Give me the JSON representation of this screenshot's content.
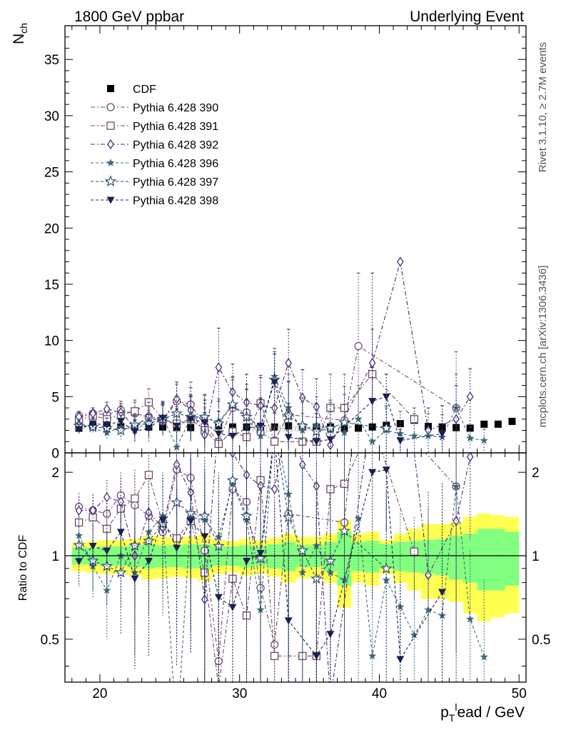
{
  "header": {
    "left_title": "1800 GeV ppbar",
    "right_title": "Underlying Event"
  },
  "side_labels": {
    "rivet": "Rivet 3.1.10, ≥ 2.7M events",
    "mcplots": "mcplots.cern.ch [arXiv:1306.3436]"
  },
  "watermark": "mcplots.cern.ch",
  "colors": {
    "cdf": "#000000",
    "band_inner": "#80ff80",
    "band_outer": "#ffff50",
    "p390": "#6e4a6e",
    "p391": "#6e4a5e",
    "p392": "#4b2a7a",
    "p396": "#3e6a7a",
    "p397": "#2a4a6a",
    "p398": "#1a2050"
  },
  "chart_data": [
    {
      "type": "scatter",
      "panel": "main",
      "ylabel": "N_ch",
      "ylim": [
        0,
        38
      ],
      "yticks": [
        "0",
        "5",
        "10",
        "15",
        "20",
        "25",
        "30",
        "35"
      ],
      "legend": {
        "placement": "top-left"
      },
      "x": [
        18.5,
        19.5,
        20.5,
        21.5,
        22.5,
        23.5,
        24.5,
        25.5,
        26.5,
        27.5,
        28.5,
        29.5,
        30.5,
        31.5,
        32.5,
        33.5,
        34.5,
        35.5,
        36.5,
        37.5,
        38.5,
        39.5,
        40.5,
        41.5,
        42.5,
        43.5,
        44.5,
        45.5,
        46.5,
        47.5,
        48.5,
        49.5
      ],
      "series": [
        {
          "name": "CDF",
          "key": "cdf",
          "marker": "filled-square",
          "values": [
            2.2,
            2.4,
            2.4,
            2.3,
            2.3,
            2.3,
            2.3,
            2.25,
            2.25,
            2.3,
            2.4,
            2.3,
            2.3,
            2.35,
            2.3,
            2.4,
            2.3,
            2.3,
            2.3,
            2.2,
            2.2,
            2.3,
            2.45,
            2.6,
            2.9,
            2.35,
            2.3,
            2.25,
            2.2,
            2.55,
            2.55,
            2.8
          ],
          "errors": [
            0.15,
            0.15,
            0.15,
            0.15,
            0.15,
            0.15,
            0.15,
            0.15,
            0.15,
            0.15,
            0.15,
            0.15,
            0.15,
            0.15,
            0.15,
            0.15,
            0.15,
            0.15,
            0.15,
            0.15,
            0.15,
            0.15,
            0.15,
            0.15,
            0.15,
            0.15,
            0.15,
            0.15,
            0.15,
            0.15,
            0.15,
            0.15
          ]
        },
        {
          "name": "Pythia 6.428 390",
          "key": "p390",
          "marker": "open-circle",
          "dash": "6 3 2 3",
          "values": [
            3.3,
            3.5,
            3.4,
            3.8,
            3.5,
            3.2,
            2.8,
            4.6,
            4.3,
            2.4,
            1.0,
            4.0,
            3.6,
            1.8,
            1.1,
            3.4,
            null,
            null,
            null,
            2.9,
            9.5,
            null,
            null,
            null,
            null,
            null,
            null,
            4.0,
            null,
            null,
            null,
            null
          ],
          "errors": [
            0.4,
            0.5,
            0.6,
            0.8,
            1.0,
            1.2,
            1.4,
            1.5,
            2.0,
            2.0,
            2.0,
            2.5,
            2.5,
            2.5,
            2.5,
            3.0,
            0,
            0,
            0,
            3.0,
            6.5,
            0,
            0,
            0,
            0,
            0,
            0,
            3.0,
            0,
            0,
            0,
            0
          ]
        },
        {
          "name": "Pythia 6.428 391",
          "key": "p391",
          "marker": "open-square",
          "dash": "6 3 2 3",
          "values": [
            2.9,
            3.3,
            3.0,
            3.4,
            3.7,
            4.5,
            3.0,
            2.6,
            3.0,
            2.0,
            0.8,
            1.9,
            1.4,
            4.4,
            1.0,
            null,
            1.0,
            1.0,
            4.0,
            4.0,
            null,
            7.0,
            null,
            null,
            3.0,
            null,
            null,
            null,
            null,
            null,
            null,
            null
          ],
          "errors": [
            0.4,
            0.5,
            0.6,
            0.8,
            1.0,
            1.2,
            1.4,
            1.5,
            2.0,
            2.0,
            2.0,
            2.5,
            2.5,
            2.5,
            2.5,
            0,
            2.5,
            2.5,
            3.0,
            3.0,
            0,
            4.0,
            0,
            0,
            1.0,
            0,
            0,
            0,
            0,
            0,
            0,
            0
          ]
        },
        {
          "name": "Pythia 6.428 392",
          "key": "p392",
          "marker": "open-diamond",
          "dash": "6 3 2 3",
          "values": [
            3.2,
            3.5,
            3.9,
            3.6,
            2.3,
            3.3,
            2.9,
            4.8,
            3.8,
            1.6,
            7.6,
            5.4,
            4.5,
            4.2,
            4.0,
            8.0,
            4.9,
            4.1,
            0.7,
            null,
            null,
            8.0,
            null,
            17.0,
            null,
            2.0,
            null,
            3.0,
            5.0,
            null,
            null,
            null
          ],
          "errors": [
            0.4,
            0.5,
            0.6,
            0.8,
            1.0,
            1.2,
            1.4,
            1.5,
            2.0,
            2.0,
            3.5,
            2.5,
            2.5,
            2.5,
            2.5,
            3.0,
            2.5,
            2.5,
            2.0,
            0,
            0,
            8.0,
            0,
            0,
            0,
            2.0,
            0,
            3.0,
            2.5,
            0,
            0,
            0
          ]
        },
        {
          "name": "Pythia 6.428 396",
          "key": "p396",
          "marker": "star",
          "dash": "4 3",
          "values": [
            2.6,
            2.2,
            1.8,
            2.3,
            2.0,
            2.8,
            3.2,
            0.5,
            3.1,
            3.1,
            2.8,
            4.2,
            3.1,
            1.5,
            6.8,
            4.0,
            2.0,
            2.5,
            2.0,
            1.8,
            3.0,
            1.0,
            2.0,
            1.7,
            1.5,
            1.5,
            1.4,
            4.0,
            1.3,
            1.1,
            null,
            null
          ],
          "errors": [
            0.4,
            0.5,
            0.6,
            0.8,
            1.0,
            1.2,
            1.4,
            1.5,
            2.0,
            2.0,
            2.0,
            2.5,
            2.5,
            2.5,
            2.5,
            3.0,
            2.5,
            2.5,
            2.5,
            2.5,
            3.0,
            1.0,
            2.0,
            2.0,
            2.0,
            2.0,
            2.0,
            5.0,
            1.0,
            1.0,
            0,
            0
          ]
        },
        {
          "name": "Pythia 6.428 397",
          "key": "p397",
          "marker": "open-star",
          "dash": "4 3",
          "values": [
            2.4,
            2.3,
            2.2,
            2.0,
            2.5,
            2.6,
            3.0,
            3.5,
            3.2,
            3.2,
            2.6,
            4.3,
            3.2,
            2.3,
            6.5,
            3.3,
            2.4,
            1.9,
            2.2,
            2.7,
            null,
            null,
            2.2,
            null,
            null,
            null,
            null,
            null,
            null,
            null,
            null,
            null
          ],
          "errors": [
            0.4,
            0.5,
            0.6,
            0.8,
            1.0,
            1.2,
            1.4,
            1.5,
            2.0,
            2.0,
            2.0,
            2.5,
            2.5,
            2.5,
            2.5,
            3.0,
            2.5,
            2.5,
            2.5,
            2.5,
            0,
            0,
            2.0,
            0,
            0,
            0,
            0,
            0,
            0,
            0,
            0,
            0
          ]
        },
        {
          "name": "Pythia 6.428 398",
          "key": "p398",
          "marker": "filled-triangle-down",
          "dash": "4 3",
          "values": [
            2.1,
            2.6,
            2.5,
            2.8,
            1.9,
            2.2,
            3.1,
            2.4,
            3.0,
            2.7,
            1.7,
            1.5,
            2.2,
            2.4,
            6.3,
            1.4,
            null,
            1.0,
            1.2,
            null,
            null,
            4.6,
            5.0,
            1.1,
            null,
            null,
            1.7,
            null,
            null,
            null,
            null,
            null
          ],
          "errors": [
            0.4,
            0.5,
            0.6,
            0.8,
            1.0,
            1.2,
            1.4,
            1.5,
            2.0,
            2.0,
            2.0,
            2.5,
            2.5,
            2.5,
            2.5,
            3.0,
            0,
            2.5,
            2.5,
            0,
            0,
            3.0,
            2.0,
            1.0,
            0,
            0,
            2.5,
            0,
            0,
            0,
            0,
            0
          ]
        }
      ]
    },
    {
      "type": "scatter",
      "panel": "ratio",
      "ylabel": "Ratio to CDF",
      "xlabel": "p_T^lead / GeV",
      "xlim": [
        17.5,
        50.5
      ],
      "xticks": [
        "20",
        "30",
        "40",
        "50"
      ],
      "ylim": [
        0.35,
        2.35
      ],
      "yticks": [
        "0.5",
        "1",
        "2"
      ],
      "reference_line": 1,
      "band_inner_halfwidth": [
        0.07,
        0.07,
        0.08,
        0.08,
        0.09,
        0.1,
        0.09,
        0.09,
        0.1,
        0.1,
        0.08,
        0.08,
        0.09,
        0.08,
        0.1,
        0.12,
        0.09,
        0.09,
        0.12,
        0.22,
        0.12,
        0.13,
        0.1,
        0.12,
        0.13,
        0.14,
        0.15,
        0.18,
        0.2,
        0.25,
        0.25,
        0.22
      ],
      "band_outer_halfwidth": [
        0.12,
        0.13,
        0.14,
        0.14,
        0.15,
        0.18,
        0.17,
        0.16,
        0.17,
        0.19,
        0.14,
        0.13,
        0.15,
        0.14,
        0.16,
        0.2,
        0.17,
        0.17,
        0.2,
        0.35,
        0.2,
        0.22,
        0.14,
        0.2,
        0.25,
        0.3,
        0.3,
        0.32,
        0.38,
        0.42,
        0.4,
        0.38
      ]
    }
  ]
}
